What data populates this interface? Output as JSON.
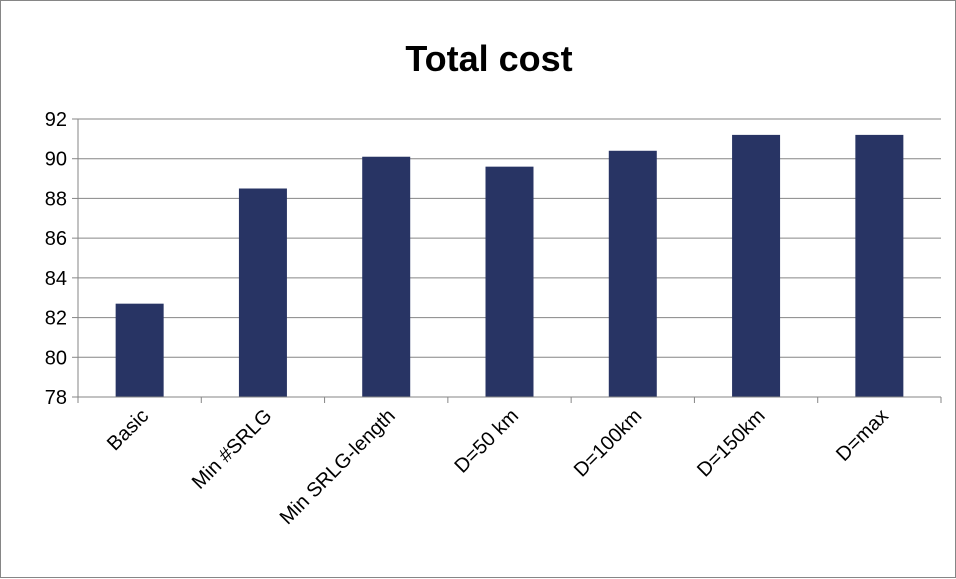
{
  "chart_data": {
    "type": "bar",
    "title": "Total cost",
    "xlabel": "",
    "ylabel": "",
    "categories": [
      "Basic",
      "Min #SRLG",
      "Min SRLG-length",
      "D=50 km",
      "D=100km",
      "D=150km",
      "D=max"
    ],
    "values": [
      82.7,
      88.5,
      90.1,
      89.6,
      90.4,
      91.2,
      91.2
    ],
    "ylim": [
      78,
      92
    ],
    "yticks": [
      78,
      80,
      82,
      84,
      86,
      88,
      90,
      92
    ],
    "grid": true,
    "legend": "none",
    "colors": {
      "bar": "#283464",
      "grid": "#868686",
      "axis": "#868686",
      "frame": "#868686"
    }
  }
}
